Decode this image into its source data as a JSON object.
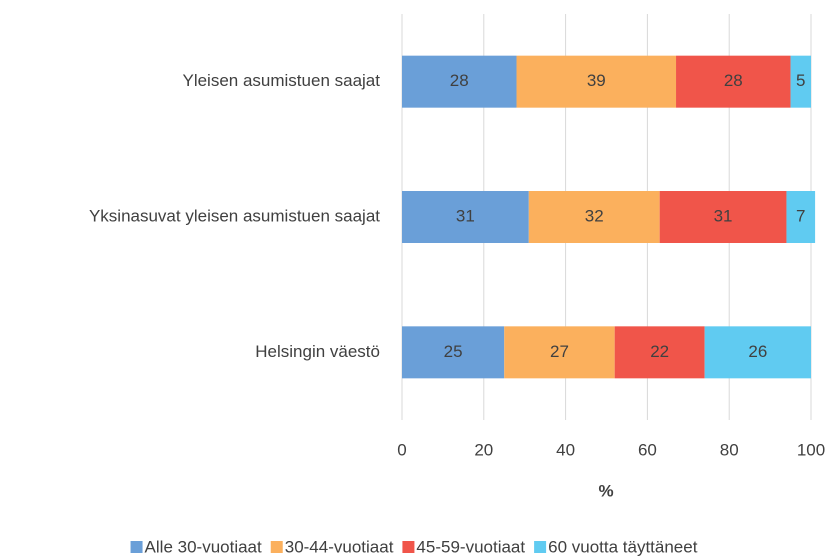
{
  "chart_data": {
    "type": "stacked-barh",
    "categories": [
      "Yleisen asumistuen saajat",
      "Yksinasuvat yleisen asumistuen saajat",
      "Helsingin väestö"
    ],
    "series": [
      {
        "name": "Alle 30-vuotiaat",
        "color": "#6a9fd8",
        "values": [
          28,
          31,
          25
        ]
      },
      {
        "name": "30-44-vuotiaat",
        "color": "#fbb05d",
        "values": [
          39,
          32,
          27
        ]
      },
      {
        "name": "45-59-vuotiaat",
        "color": "#f0554a",
        "values": [
          28,
          31,
          22
        ]
      },
      {
        "name": "60 vuotta täyttäneet",
        "color": "#60cbf1",
        "values": [
          5,
          7,
          26
        ]
      }
    ],
    "xlabel": "%",
    "xlim": [
      0,
      100
    ],
    "xticks": [
      0,
      20,
      40,
      60,
      80,
      100
    ],
    "grid": true,
    "legend": "bottom"
  }
}
